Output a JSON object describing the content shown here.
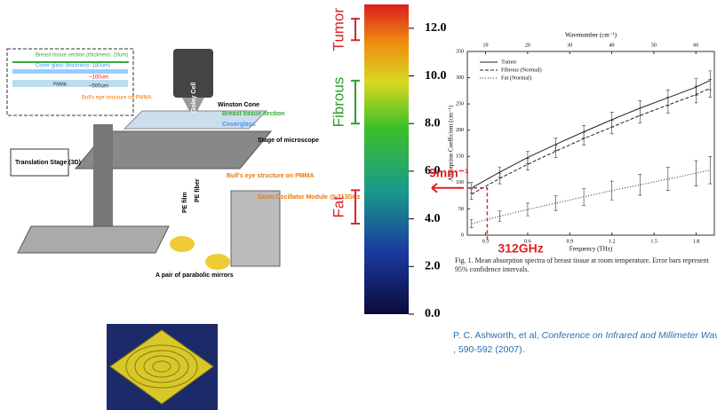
{
  "setup_figure": {
    "inset_labels": [
      "Breast tissue section (thickness: 20um)",
      "Cover glass (thickness: 180um)",
      "~100um",
      "~500um",
      "Bull's eye structure on PMMA",
      "PMMA"
    ],
    "labels": [
      "Golay Cell",
      "Winston Cone",
      "Breast tissue section",
      "Coverglass",
      "Stage of microscope",
      "Bull's eye structure on PMMA",
      "Gunn Oscillator Module @ 313GHz",
      "PE fiber",
      "PE film",
      "Translation Stage (3D)",
      "A pair of parabolic mirrors"
    ]
  },
  "colorbar": {
    "lim": [
      0,
      13
    ],
    "ticks": [
      {
        "value": 0,
        "label": "0.0"
      },
      {
        "value": 2,
        "label": "2.0"
      },
      {
        "value": 4,
        "label": "4.0"
      },
      {
        "value": 6,
        "label": "6.0"
      },
      {
        "value": 8,
        "label": "8.0"
      },
      {
        "value": 10,
        "label": "10.0"
      },
      {
        "value": 12,
        "label": "12.0"
      }
    ],
    "regions": [
      {
        "label": "Tumor",
        "range": [
          11.5,
          12.4
        ],
        "color": "#d62728"
      },
      {
        "label": "Fibrous",
        "range": [
          8.0,
          9.8
        ],
        "color": "#2ca02c"
      },
      {
        "label": "Fat",
        "range": [
          3.8,
          5.2
        ],
        "color": "#d62728"
      }
    ]
  },
  "plot": {
    "type": "line",
    "x_label": "Frequency (THz)",
    "x2_label": "Wavenumber (cm⁻¹)",
    "y_label": "Absorption Coefficient (cm⁻¹)",
    "xlim": [
      0.17,
      1.93
    ],
    "x2lim": [
      5.67,
      64.38
    ],
    "ylim": [
      0,
      350
    ],
    "xticks": [
      0.3,
      0.6,
      0.9,
      1.2,
      1.5,
      1.8
    ],
    "x2ticks": [
      10,
      20,
      30,
      40,
      50,
      60
    ],
    "yticks": [
      0,
      50,
      100,
      150,
      200,
      250,
      300,
      350
    ],
    "x": [
      0.2,
      0.4,
      0.6,
      0.8,
      1.0,
      1.2,
      1.4,
      1.6,
      1.8,
      1.9
    ],
    "series": [
      {
        "name": "Tumor",
        "style": "solid",
        "values": [
          90,
          120,
          148,
          173,
          197,
          220,
          242,
          262,
          282,
          295
        ],
        "errors": [
          10,
          10,
          12,
          12,
          12,
          14,
          14,
          15,
          16,
          18
        ]
      },
      {
        "name": "Fibrous (Normal)",
        "style": "dashed",
        "values": [
          78,
          108,
          135,
          160,
          184,
          206,
          228,
          248,
          268,
          280
        ],
        "errors": [
          10,
          10,
          11,
          12,
          12,
          13,
          14,
          15,
          16,
          17
        ]
      },
      {
        "name": "Fat (Normal)",
        "style": "dotted",
        "values": [
          22,
          36,
          49,
          61,
          73,
          85,
          96,
          107,
          118,
          124
        ],
        "errors": [
          8,
          10,
          12,
          14,
          16,
          18,
          20,
          22,
          24,
          26
        ]
      }
    ],
    "caption": "Fig. 1.   Mean absorption spectra of breast tissue at room temperature. Error bars represent 95% confidence intervals.",
    "annotations": [
      "9mm⁻¹",
      "312GHz"
    ]
  },
  "citation": {
    "authors": "P. C. Ashworth, et al,",
    "venue": "Conference on Infrared and Millimeter Waves",
    "pages": ", 590-592 (2007)."
  }
}
